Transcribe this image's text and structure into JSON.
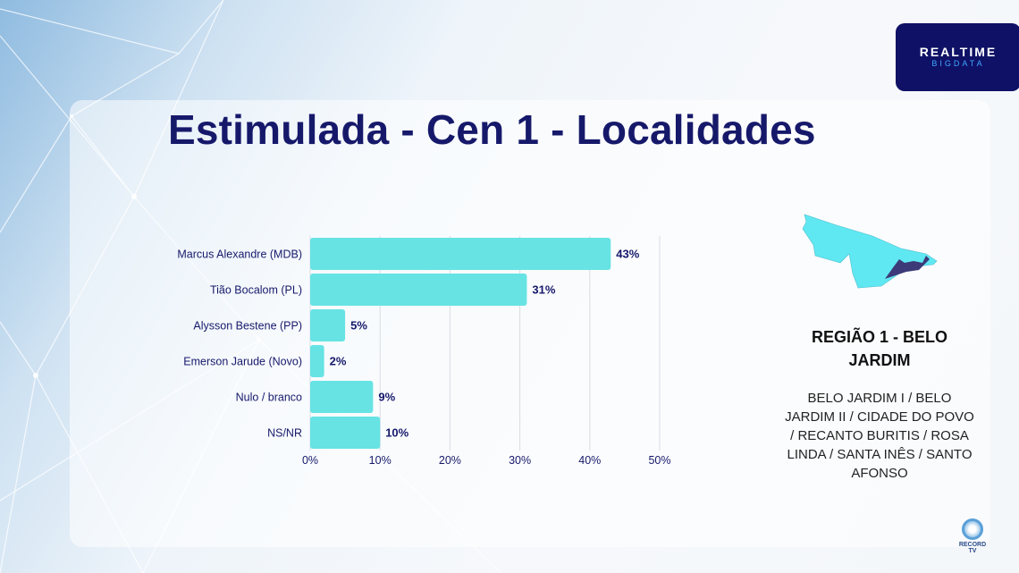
{
  "header": {
    "title": "Estimulada - Cen 1 - Localidades"
  },
  "logo": {
    "line1": "REALTIME",
    "line2": "BIGDATA"
  },
  "region": {
    "title": "REGIÃO 1 - BELO JARDIM",
    "localities": "BELO JARDIM I / BELO JARDIM II / CIDADE DO POVO / RECANTO BURITIS / ROSA LINDA / SANTA INÊS / SANTO AFONSO"
  },
  "footer": {
    "broadcaster": "RECORD TV"
  },
  "colors": {
    "bar": "#67e3e4",
    "title": "#16196a",
    "label": "#16196a"
  },
  "chart_data": {
    "type": "bar",
    "orientation": "horizontal",
    "categories": [
      "Marcus Alexandre (MDB)",
      "Tião Bocalom (PL)",
      "Alysson Bestene (PP)",
      "Emerson Jarude (Novo)",
      "Nulo / branco",
      "NS/NR"
    ],
    "values": [
      43,
      31,
      5,
      2,
      9,
      10
    ],
    "value_labels": [
      "43%",
      "31%",
      "5%",
      "2%",
      "9%",
      "10%"
    ],
    "xlim": [
      0,
      50
    ],
    "xticks": [
      0,
      10,
      20,
      30,
      40,
      50
    ],
    "xtick_labels": [
      "0%",
      "10%",
      "20%",
      "30%",
      "40%",
      "50%"
    ],
    "grid": "vertical"
  }
}
